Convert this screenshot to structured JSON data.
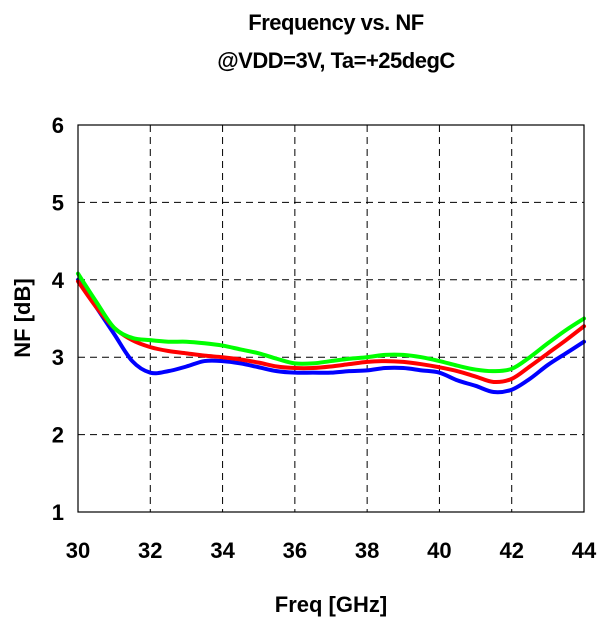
{
  "chart_data": {
    "type": "line",
    "title": "Frequency vs. NF",
    "subtitle": "@VDD=3V, Ta=+25degC",
    "xlabel": "Freq [GHz]",
    "ylabel": "NF [dB]",
    "xlim": [
      30,
      44
    ],
    "ylim": [
      1,
      6
    ],
    "xticks": [
      "30",
      "32",
      "34",
      "36",
      "38",
      "40",
      "42",
      "44"
    ],
    "yticks": [
      "1",
      "2",
      "3",
      "4",
      "5",
      "6"
    ],
    "grid": true,
    "series": [
      {
        "color": "#0000ff",
        "x": [
          30,
          30.5,
          31,
          31.5,
          32,
          32.5,
          33,
          33.5,
          34,
          34.5,
          35,
          35.5,
          36,
          36.5,
          37,
          37.5,
          38,
          38.5,
          39,
          39.5,
          40,
          40.5,
          41,
          41.5,
          42,
          42.5,
          43,
          43.5,
          44
        ],
        "y": [
          4.0,
          3.65,
          3.3,
          2.95,
          2.8,
          2.82,
          2.88,
          2.95,
          2.95,
          2.92,
          2.87,
          2.82,
          2.8,
          2.8,
          2.8,
          2.82,
          2.83,
          2.86,
          2.86,
          2.83,
          2.8,
          2.7,
          2.63,
          2.55,
          2.58,
          2.72,
          2.9,
          3.05,
          3.2
        ]
      },
      {
        "color": "#ff0000",
        "x": [
          30,
          30.5,
          31,
          31.5,
          32,
          32.5,
          33,
          33.5,
          34,
          34.5,
          35,
          35.5,
          36,
          36.5,
          37,
          37.5,
          38,
          38.5,
          39,
          39.5,
          40,
          40.5,
          41,
          41.5,
          42,
          42.5,
          43,
          43.5,
          44
        ],
        "y": [
          3.98,
          3.65,
          3.38,
          3.22,
          3.13,
          3.08,
          3.05,
          3.02,
          3.0,
          2.97,
          2.93,
          2.88,
          2.86,
          2.86,
          2.88,
          2.91,
          2.94,
          2.95,
          2.94,
          2.91,
          2.87,
          2.82,
          2.75,
          2.68,
          2.72,
          2.88,
          3.05,
          3.22,
          3.4
        ]
      },
      {
        "color": "#00ff00",
        "x": [
          30,
          30.5,
          31,
          31.5,
          32,
          32.5,
          33,
          33.5,
          34,
          34.5,
          35,
          35.5,
          36,
          36.5,
          37,
          37.5,
          38,
          38.5,
          39,
          39.5,
          40,
          40.5,
          41,
          41.5,
          42,
          42.5,
          43,
          43.5,
          44
        ],
        "y": [
          4.08,
          3.72,
          3.38,
          3.25,
          3.22,
          3.2,
          3.2,
          3.18,
          3.15,
          3.1,
          3.05,
          2.98,
          2.92,
          2.92,
          2.95,
          2.98,
          3.0,
          3.03,
          3.03,
          3.0,
          2.95,
          2.89,
          2.84,
          2.82,
          2.85,
          3.0,
          3.18,
          3.35,
          3.5
        ]
      }
    ]
  }
}
